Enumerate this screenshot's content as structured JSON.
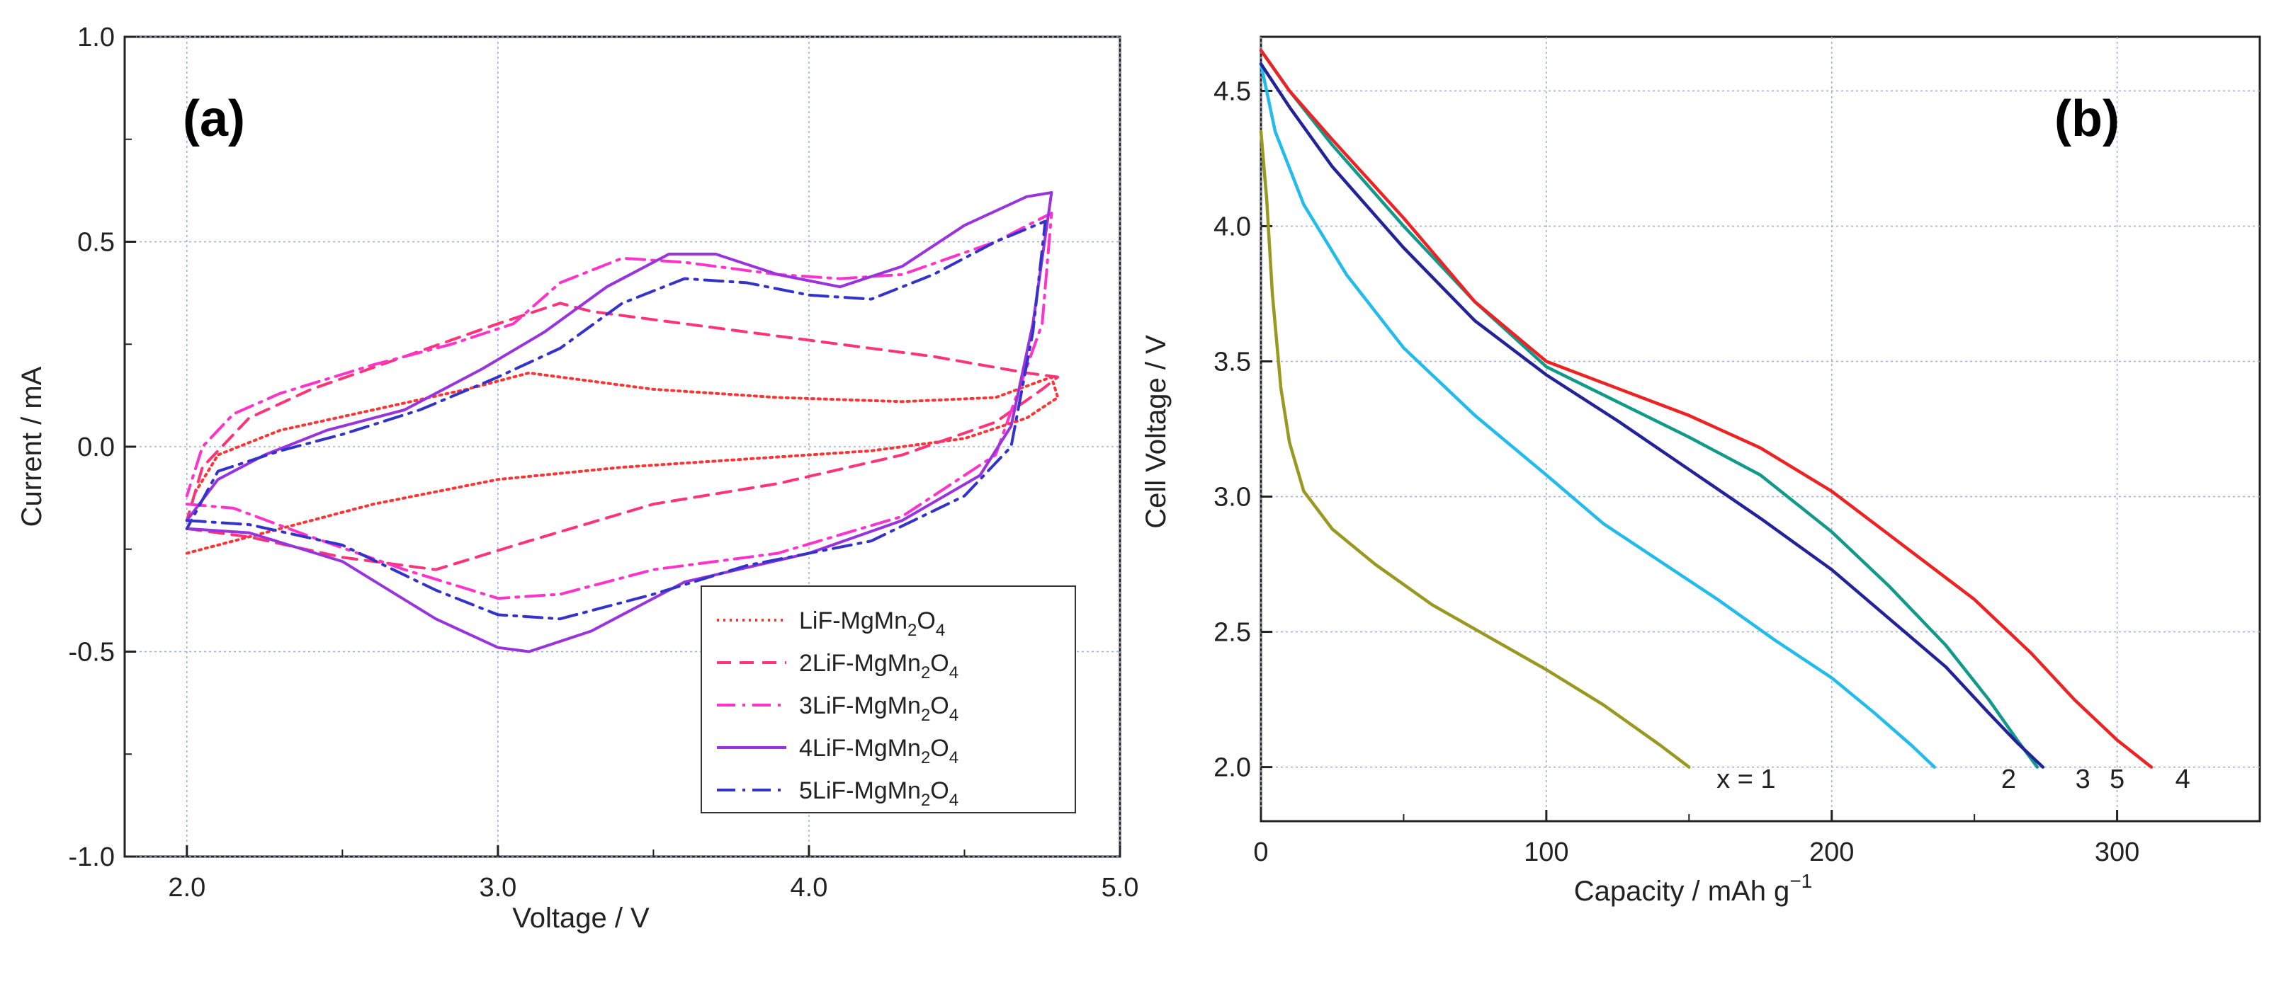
{
  "panels": {
    "a": {
      "label": "(a)"
    },
    "b": {
      "label": "(b)"
    }
  },
  "chart_data": [
    {
      "id": "a",
      "type": "line",
      "title": "",
      "xlabel": "Voltage / V",
      "ylabel": "Current / mA",
      "xlim": [
        1.8,
        5.0
      ],
      "ylim": [
        -1.0,
        1.0
      ],
      "xticks": [
        2.0,
        3.0,
        4.0,
        5.0
      ],
      "xtick_labels": [
        "2.0",
        "3.0",
        "4.0",
        "5.0"
      ],
      "yticks": [
        -1.0,
        -0.5,
        0.0,
        0.5,
        1.0
      ],
      "ytick_labels": [
        "-1.0",
        "-0.5",
        "0.0",
        "0.5",
        "1.0"
      ],
      "grid": true,
      "legend_position": "bottom-right",
      "series": [
        {
          "name": "LiF-MgMn2O4",
          "name_prefix": "LiF-MgMn",
          "sub1": "2",
          "mid": "O",
          "sub2": "4",
          "color": "#ff3333",
          "dash": "3,6",
          "points": [
            [
              2.0,
              -0.26
            ],
            [
              2.3,
              -0.2
            ],
            [
              2.6,
              -0.14
            ],
            [
              3.0,
              -0.08
            ],
            [
              3.4,
              -0.05
            ],
            [
              3.8,
              -0.03
            ],
            [
              4.2,
              -0.01
            ],
            [
              4.5,
              0.02
            ],
            [
              4.7,
              0.07
            ],
            [
              4.8,
              0.12
            ],
            [
              4.78,
              0.17
            ],
            [
              4.6,
              0.12
            ],
            [
              4.3,
              0.11
            ],
            [
              3.9,
              0.12
            ],
            [
              3.5,
              0.14
            ],
            [
              3.2,
              0.17
            ],
            [
              3.1,
              0.18
            ],
            [
              2.9,
              0.14
            ],
            [
              2.6,
              0.09
            ],
            [
              2.3,
              0.04
            ],
            [
              2.1,
              -0.02
            ],
            [
              2.02,
              -0.12
            ]
          ]
        },
        {
          "name": "2LiF-MgMn2O4",
          "name_prefix": "2LiF-MgMn",
          "sub1": "2",
          "mid": "O",
          "sub2": "4",
          "color": "#ff3377",
          "dash": "20,12",
          "points": [
            [
              2.0,
              -0.2
            ],
            [
              2.2,
              -0.22
            ],
            [
              2.5,
              -0.27
            ],
            [
              2.8,
              -0.3
            ],
            [
              3.1,
              -0.23
            ],
            [
              3.5,
              -0.14
            ],
            [
              3.9,
              -0.09
            ],
            [
              4.3,
              -0.02
            ],
            [
              4.6,
              0.06
            ],
            [
              4.75,
              0.14
            ],
            [
              4.8,
              0.17
            ],
            [
              4.7,
              0.18
            ],
            [
              4.4,
              0.22
            ],
            [
              4.0,
              0.26
            ],
            [
              3.6,
              0.3
            ],
            [
              3.3,
              0.33
            ],
            [
              3.2,
              0.35
            ],
            [
              3.0,
              0.3
            ],
            [
              2.7,
              0.22
            ],
            [
              2.4,
              0.14
            ],
            [
              2.2,
              0.07
            ],
            [
              2.05,
              -0.05
            ],
            [
              2.0,
              -0.18
            ]
          ]
        },
        {
          "name": "3LiF-MgMn2O4",
          "name_prefix": "3LiF-MgMn",
          "sub1": "2",
          "mid": "O",
          "sub2": "4",
          "color": "#ff33cc",
          "dash": "26,10,4,10",
          "points": [
            [
              2.0,
              -0.14
            ],
            [
              2.15,
              -0.15
            ],
            [
              2.4,
              -0.22
            ],
            [
              2.7,
              -0.3
            ],
            [
              3.0,
              -0.37
            ],
            [
              3.2,
              -0.36
            ],
            [
              3.5,
              -0.3
            ],
            [
              3.9,
              -0.26
            ],
            [
              4.3,
              -0.17
            ],
            [
              4.6,
              -0.02
            ],
            [
              4.75,
              0.3
            ],
            [
              4.78,
              0.57
            ],
            [
              4.6,
              0.5
            ],
            [
              4.3,
              0.42
            ],
            [
              4.1,
              0.41
            ],
            [
              3.9,
              0.42
            ],
            [
              3.6,
              0.45
            ],
            [
              3.4,
              0.46
            ],
            [
              3.2,
              0.4
            ],
            [
              3.05,
              0.3
            ],
            [
              2.85,
              0.25
            ],
            [
              2.6,
              0.2
            ],
            [
              2.3,
              0.13
            ],
            [
              2.15,
              0.08
            ],
            [
              2.05,
              0.0
            ],
            [
              2.0,
              -0.12
            ]
          ]
        },
        {
          "name": "4LiF-MgMn2O4",
          "name_prefix": "4LiF-MgMn",
          "sub1": "2",
          "mid": "O",
          "sub2": "4",
          "color": "#9933dd",
          "dash": "",
          "points": [
            [
              2.0,
              -0.2
            ],
            [
              2.2,
              -0.21
            ],
            [
              2.5,
              -0.28
            ],
            [
              2.8,
              -0.42
            ],
            [
              3.0,
              -0.49
            ],
            [
              3.1,
              -0.5
            ],
            [
              3.3,
              -0.45
            ],
            [
              3.6,
              -0.33
            ],
            [
              4.0,
              -0.26
            ],
            [
              4.3,
              -0.18
            ],
            [
              4.55,
              -0.07
            ],
            [
              4.65,
              0.05
            ],
            [
              4.72,
              0.3
            ],
            [
              4.78,
              0.62
            ],
            [
              4.7,
              0.61
            ],
            [
              4.5,
              0.54
            ],
            [
              4.3,
              0.44
            ],
            [
              4.1,
              0.39
            ],
            [
              3.9,
              0.42
            ],
            [
              3.7,
              0.47
            ],
            [
              3.55,
              0.47
            ],
            [
              3.35,
              0.39
            ],
            [
              3.15,
              0.28
            ],
            [
              2.95,
              0.19
            ],
            [
              2.7,
              0.09
            ],
            [
              2.45,
              0.04
            ],
            [
              2.25,
              -0.02
            ],
            [
              2.1,
              -0.08
            ],
            [
              2.0,
              -0.18
            ]
          ]
        },
        {
          "name": "5LiF-MgMn2O4",
          "name_prefix": "5LiF-MgMn",
          "sub1": "2",
          "mid": "O",
          "sub2": "4",
          "color": "#3333cc",
          "dash": "26,10,4,10",
          "points": [
            [
              2.0,
              -0.18
            ],
            [
              2.2,
              -0.19
            ],
            [
              2.5,
              -0.24
            ],
            [
              2.8,
              -0.35
            ],
            [
              3.0,
              -0.41
            ],
            [
              3.2,
              -0.42
            ],
            [
              3.5,
              -0.36
            ],
            [
              3.8,
              -0.29
            ],
            [
              4.2,
              -0.23
            ],
            [
              4.5,
              -0.12
            ],
            [
              4.65,
              0.0
            ],
            [
              4.72,
              0.28
            ],
            [
              4.76,
              0.55
            ],
            [
              4.6,
              0.5
            ],
            [
              4.4,
              0.42
            ],
            [
              4.2,
              0.36
            ],
            [
              4.0,
              0.37
            ],
            [
              3.8,
              0.4
            ],
            [
              3.6,
              0.41
            ],
            [
              3.4,
              0.35
            ],
            [
              3.2,
              0.24
            ],
            [
              3.0,
              0.17
            ],
            [
              2.75,
              0.09
            ],
            [
              2.5,
              0.03
            ],
            [
              2.3,
              -0.01
            ],
            [
              2.1,
              -0.06
            ],
            [
              2.0,
              -0.2
            ]
          ]
        }
      ]
    },
    {
      "id": "b",
      "type": "line",
      "title": "",
      "xlabel_main": "Capacity / mAh g",
      "xlabel_sup": "−1",
      "ylabel": "Cell Voltage / V",
      "xlim": [
        0,
        350
      ],
      "ylim": [
        1.8,
        4.7
      ],
      "xticks": [
        0,
        100,
        200,
        300
      ],
      "xtick_labels": [
        "0",
        "100",
        "200",
        "300"
      ],
      "yticks": [
        2.0,
        2.5,
        3.0,
        3.5,
        4.0,
        4.5
      ],
      "ytick_labels": [
        "2.0",
        "2.5",
        "3.0",
        "3.5",
        "4.0",
        "4.5"
      ],
      "grid": true,
      "curve_labels": [
        {
          "text": "x = 1",
          "x": 170,
          "y": 1.98
        },
        {
          "text": "2",
          "x": 262,
          "y": 1.98
        },
        {
          "text": "3",
          "x": 288,
          "y": 1.98
        },
        {
          "text": "5",
          "x": 300,
          "y": 1.98
        },
        {
          "text": "4",
          "x": 323,
          "y": 1.98
        }
      ],
      "series": [
        {
          "name": "x = 1",
          "color": "#999922",
          "points": [
            [
              0,
              4.35
            ],
            [
              2,
              4.1
            ],
            [
              4,
              3.75
            ],
            [
              7,
              3.4
            ],
            [
              10,
              3.2
            ],
            [
              15,
              3.02
            ],
            [
              25,
              2.88
            ],
            [
              40,
              2.75
            ],
            [
              60,
              2.6
            ],
            [
              80,
              2.48
            ],
            [
              100,
              2.36
            ],
            [
              120,
              2.23
            ],
            [
              140,
              2.08
            ],
            [
              150,
              2.0
            ]
          ]
        },
        {
          "name": "2",
          "color": "#22bbee",
          "points": [
            [
              0,
              4.6
            ],
            [
              5,
              4.35
            ],
            [
              15,
              4.08
            ],
            [
              30,
              3.82
            ],
            [
              50,
              3.55
            ],
            [
              75,
              3.3
            ],
            [
              100,
              3.08
            ],
            [
              120,
              2.9
            ],
            [
              140,
              2.76
            ],
            [
              160,
              2.62
            ],
            [
              180,
              2.47
            ],
            [
              200,
              2.33
            ],
            [
              215,
              2.2
            ],
            [
              228,
              2.08
            ],
            [
              236,
              2.0
            ]
          ]
        },
        {
          "name": "3",
          "color": "#11998a",
          "points": [
            [
              0,
              4.65
            ],
            [
              10,
              4.5
            ],
            [
              25,
              4.3
            ],
            [
              50,
              4.0
            ],
            [
              75,
              3.72
            ],
            [
              100,
              3.48
            ],
            [
              125,
              3.35
            ],
            [
              150,
              3.22
            ],
            [
              175,
              3.08
            ],
            [
              200,
              2.87
            ],
            [
              220,
              2.67
            ],
            [
              240,
              2.45
            ],
            [
              255,
              2.25
            ],
            [
              265,
              2.1
            ],
            [
              272,
              2.0
            ]
          ]
        },
        {
          "name": "5",
          "color": "#222299",
          "points": [
            [
              0,
              4.6
            ],
            [
              10,
              4.44
            ],
            [
              25,
              4.22
            ],
            [
              50,
              3.92
            ],
            [
              75,
              3.65
            ],
            [
              100,
              3.45
            ],
            [
              125,
              3.28
            ],
            [
              150,
              3.1
            ],
            [
              175,
              2.92
            ],
            [
              200,
              2.73
            ],
            [
              220,
              2.55
            ],
            [
              240,
              2.37
            ],
            [
              255,
              2.2
            ],
            [
              265,
              2.09
            ],
            [
              274,
              2.0
            ]
          ]
        },
        {
          "name": "4",
          "color": "#ee2222",
          "points": [
            [
              0,
              4.65
            ],
            [
              10,
              4.5
            ],
            [
              25,
              4.32
            ],
            [
              50,
              4.03
            ],
            [
              75,
              3.72
            ],
            [
              100,
              3.5
            ],
            [
              125,
              3.4
            ],
            [
              150,
              3.3
            ],
            [
              175,
              3.18
            ],
            [
              200,
              3.02
            ],
            [
              225,
              2.82
            ],
            [
              250,
              2.62
            ],
            [
              270,
              2.42
            ],
            [
              285,
              2.25
            ],
            [
              300,
              2.1
            ],
            [
              312,
              2.0
            ]
          ]
        }
      ]
    }
  ]
}
